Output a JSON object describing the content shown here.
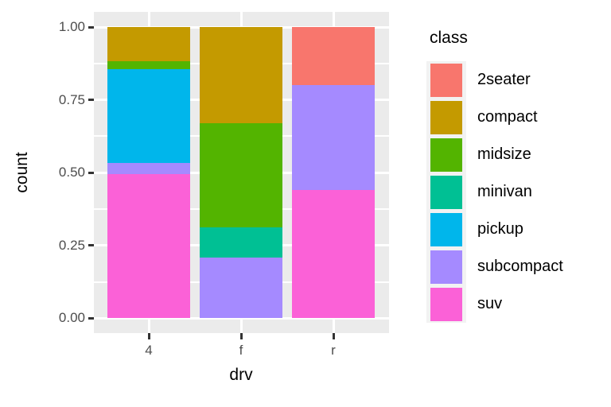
{
  "chart_data": {
    "type": "bar",
    "subtype": "stacked-fill-proportional",
    "title": "",
    "xlabel": "drv",
    "ylabel": "count",
    "categories": [
      "4",
      "f",
      "r"
    ],
    "series": [
      {
        "name": "2seater",
        "color": "#F8766D",
        "values": [
          0,
          0,
          0.2
        ]
      },
      {
        "name": "compact",
        "color": "#C49A00",
        "values": [
          0.1165,
          0.3302,
          0
        ]
      },
      {
        "name": "midsize",
        "color": "#53B400",
        "values": [
          0.0291,
          0.3585,
          0
        ]
      },
      {
        "name": "minivan",
        "color": "#00C094",
        "values": [
          0,
          0.1038,
          0
        ]
      },
      {
        "name": "pickup",
        "color": "#00B6EB",
        "values": [
          0.3204,
          0,
          0
        ]
      },
      {
        "name": "subcompact",
        "color": "#A58AFF",
        "values": [
          0.0388,
          0.2075,
          0.36
        ]
      },
      {
        "name": "suv",
        "color": "#FB61D7",
        "values": [
          0.4951,
          0,
          0.44
        ]
      }
    ],
    "stack_order": "first series on top",
    "ylim": [
      0,
      1
    ],
    "yticks": [
      {
        "value": 0.0,
        "label": "0.00"
      },
      {
        "value": 0.25,
        "label": "0.25"
      },
      {
        "value": 0.5,
        "label": "0.50"
      },
      {
        "value": 0.75,
        "label": "0.75"
      },
      {
        "value": 1.0,
        "label": "1.00"
      }
    ],
    "grid": {
      "major": true,
      "minor": true,
      "color": "#FFFFFF"
    },
    "legend": {
      "title": "class",
      "position": "right"
    },
    "theme": {
      "panel_background": "#EBEBEB",
      "gridline_color": "#FFFFFF",
      "tick_label_color": "#4D4D4D",
      "tick_mark_color": "#333333",
      "axis_title_color": "#000000",
      "legend_key_background": "#F2F2F2",
      "figure_background": "#FFFFFF"
    }
  }
}
